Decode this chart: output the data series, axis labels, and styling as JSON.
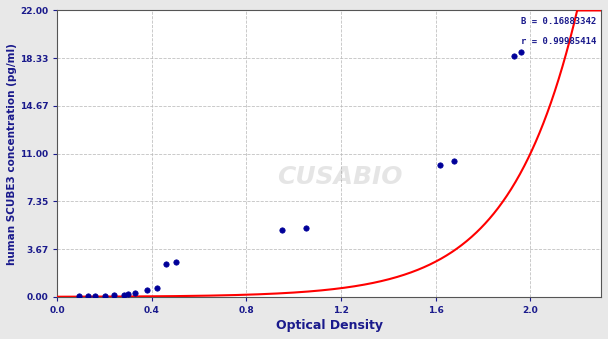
{
  "title": "",
  "xlabel": "Optical Density",
  "ylabel": "human SCUBE3 concentration (pg/ml)",
  "annotation_line1": "B = 0.16883342",
  "annotation_line2": "r = 0.99985414",
  "xlim": [
    0.0,
    2.3
  ],
  "ylim": [
    0.0,
    22.0
  ],
  "xticks": [
    0.0,
    0.4,
    0.8,
    1.2,
    1.6,
    2.0
  ],
  "yticks": [
    0.0,
    3.67,
    7.35,
    11.0,
    14.67,
    18.33,
    22.0
  ],
  "ytick_labels": [
    "0.00",
    "3.67",
    "7.35",
    "11.00",
    "14.67",
    "18.33",
    "22.00"
  ],
  "data_x": [
    0.09,
    0.13,
    0.16,
    0.2,
    0.24,
    0.28,
    0.3,
    0.33,
    0.38,
    0.42,
    0.46,
    0.5,
    0.95,
    1.05,
    1.62,
    1.68,
    1.93,
    1.96
  ],
  "data_y": [
    0.03,
    0.05,
    0.06,
    0.08,
    0.12,
    0.18,
    0.22,
    0.3,
    0.5,
    0.65,
    2.5,
    2.7,
    5.1,
    5.3,
    10.1,
    10.4,
    18.5,
    18.8
  ],
  "curve_color": "#FF0000",
  "point_color": "#000099",
  "grid_color": "#BBBBBB",
  "fig_bg_color": "#E8E8E8",
  "plot_bg_color": "#FFFFFF",
  "watermark_text": "CUSABIO",
  "fig_width": 6.08,
  "fig_height": 3.39,
  "dpi": 100
}
